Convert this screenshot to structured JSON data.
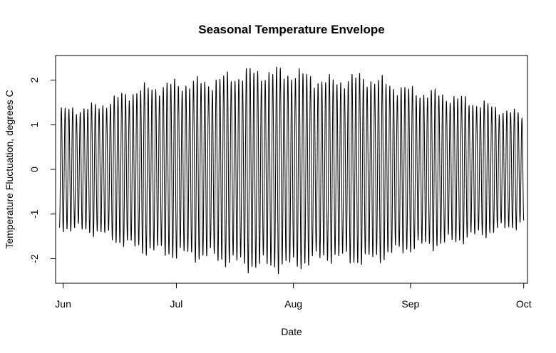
{
  "chart_data": {
    "type": "line",
    "title": "Seasonal Temperature Envelope",
    "xlabel": "Date",
    "ylabel": "Temperature Fluctuation, degrees C",
    "x_start": "2023-05-31",
    "x_end": "2023-10-01",
    "xlim": [
      "2023-05-30",
      "2023-10-02"
    ],
    "ylim": [
      -2.55,
      2.55
    ],
    "x_ticks": [
      {
        "date": "2023-06-01",
        "label": "Jun"
      },
      {
        "date": "2023-07-01",
        "label": "Jul"
      },
      {
        "date": "2023-08-01",
        "label": "Aug"
      },
      {
        "date": "2023-09-01",
        "label": "Sep"
      },
      {
        "date": "2023-10-01",
        "label": "Oct"
      }
    ],
    "y_ticks": [
      -2,
      -1,
      0,
      1,
      2
    ],
    "envelope": {
      "dates": [
        "2023-05-31",
        "2023-06-10",
        "2023-06-20",
        "2023-07-01",
        "2023-07-10",
        "2023-07-20",
        "2023-08-01",
        "2023-08-10",
        "2023-08-20",
        "2023-09-01",
        "2023-09-10",
        "2023-09-20",
        "2023-10-01"
      ],
      "amplitude": [
        1.3,
        1.4,
        1.75,
        1.9,
        1.95,
        2.15,
        2.15,
        1.95,
        2.05,
        1.75,
        1.65,
        1.45,
        1.2
      ]
    },
    "oscillations_per_day": 1,
    "line_color": "#000000",
    "grid": false,
    "legend": "none"
  }
}
